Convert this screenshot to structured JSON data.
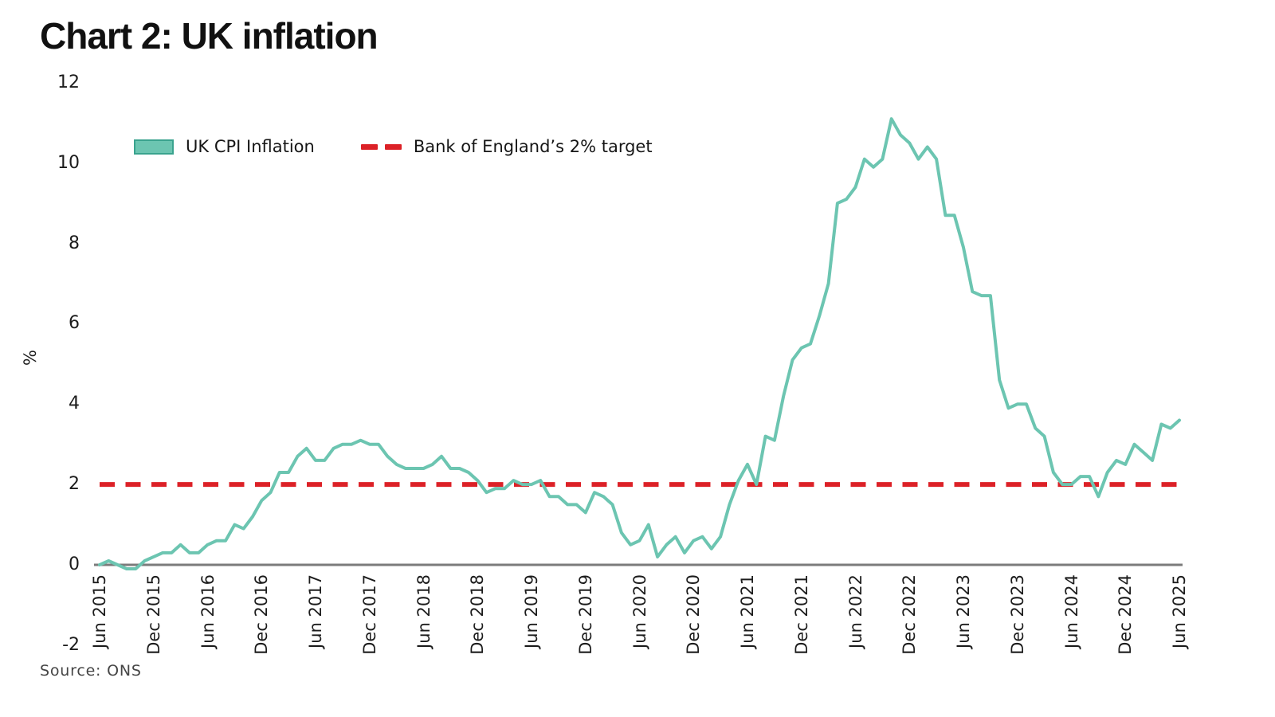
{
  "chart_data": {
    "type": "line",
    "title": "Chart 2: UK inflation",
    "ylabel": "%",
    "xlabel": "",
    "ylim": [
      -2,
      12
    ],
    "yticks": [
      12,
      10,
      8,
      6,
      4,
      2,
      0,
      -2
    ],
    "grid": false,
    "legend_position": "top-left-inside",
    "x_frequency": "monthly",
    "x_start": "Jun 2015",
    "x_end": "Jun 2025",
    "x_tick_labels": [
      "Jun 2015",
      "Dec 2015",
      "Jun 2016",
      "Dec 2016",
      "Jun 2017",
      "Dec 2017",
      "Jun 2018",
      "Dec 2018",
      "Jun 2019",
      "Dec 2019",
      "Jun 2020",
      "Dec 2020",
      "Jun 2021",
      "Dec 2021",
      "Jun 2022",
      "Dec 2022",
      "Jun 2023",
      "Dec 2023",
      "Jun 2024",
      "Dec 2024",
      "Jun 2025"
    ],
    "series": [
      {
        "name": "UK CPI Inflation",
        "style": "solid",
        "color": "#6CC5B1",
        "values": [
          0.0,
          0.1,
          0.0,
          -0.1,
          -0.1,
          0.1,
          0.2,
          0.3,
          0.3,
          0.5,
          0.3,
          0.3,
          0.5,
          0.6,
          0.6,
          1.0,
          0.9,
          1.2,
          1.6,
          1.8,
          2.3,
          2.3,
          2.7,
          2.9,
          2.6,
          2.6,
          2.9,
          3.0,
          3.0,
          3.1,
          3.0,
          3.0,
          2.7,
          2.5,
          2.4,
          2.4,
          2.4,
          2.5,
          2.7,
          2.4,
          2.4,
          2.3,
          2.1,
          1.8,
          1.9,
          1.9,
          2.1,
          2.0,
          2.0,
          2.1,
          1.7,
          1.7,
          1.5,
          1.5,
          1.3,
          1.8,
          1.7,
          1.5,
          0.8,
          0.5,
          0.6,
          1.0,
          0.2,
          0.5,
          0.7,
          0.3,
          0.6,
          0.7,
          0.4,
          0.7,
          1.5,
          2.1,
          2.5,
          2.0,
          3.2,
          3.1,
          4.2,
          5.1,
          5.4,
          5.5,
          6.2,
          7.0,
          9.0,
          9.1,
          9.4,
          10.1,
          9.9,
          10.1,
          11.1,
          10.7,
          10.5,
          10.1,
          10.4,
          10.1,
          8.7,
          8.7,
          7.9,
          6.8,
          6.7,
          6.7,
          4.6,
          3.9,
          4.0,
          4.0,
          3.4,
          3.2,
          2.3,
          2.0,
          2.0,
          2.2,
          2.2,
          1.7,
          2.3,
          2.6,
          2.5,
          3.0,
          2.8,
          2.6,
          3.5,
          3.4,
          3.6
        ]
      },
      {
        "name": "Bank of England’s 2% target",
        "style": "dashed",
        "color": "#DC2127",
        "target_value": 2
      }
    ],
    "source": "Source: ONS"
  },
  "colors": {
    "cpi_line": "#6CC5B1",
    "cpi_swatch_border": "#3AA38E",
    "target_line": "#DC2127",
    "axis_line": "#7B7B7B",
    "text": "#1c1c1c"
  }
}
